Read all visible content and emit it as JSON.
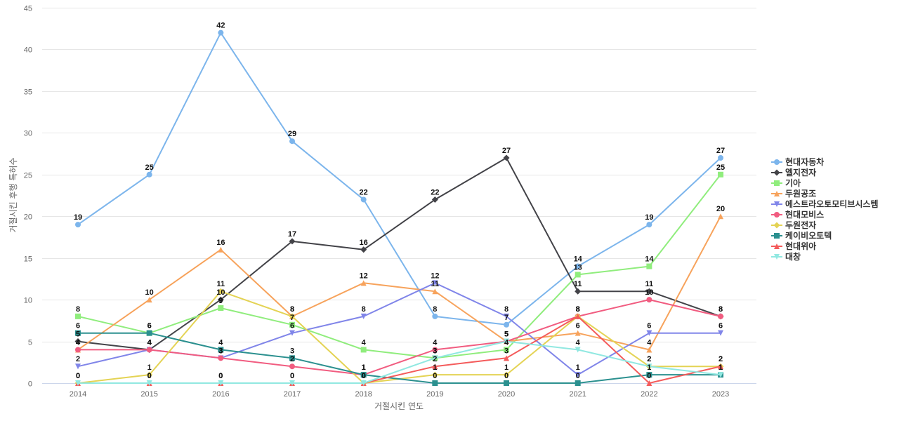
{
  "chart_data": {
    "type": "line",
    "title": "",
    "xlabel": "거절시킨 연도",
    "ylabel": "거절시킨 후행 특허수",
    "ylim": [
      0,
      45
    ],
    "yticks": [
      0,
      5,
      10,
      15,
      20,
      25,
      30,
      35,
      40,
      45
    ],
    "categories": [
      "2014",
      "2015",
      "2016",
      "2017",
      "2018",
      "2019",
      "2020",
      "2021",
      "2022",
      "2023"
    ],
    "grid": true,
    "legend_position": "right",
    "series": [
      {
        "name": "현대자동차",
        "color": "#7cb5ec",
        "marker": "circle",
        "values": [
          19,
          25,
          42,
          29,
          22,
          8,
          7,
          14,
          19,
          27
        ]
      },
      {
        "name": "엘지전자",
        "color": "#434348",
        "marker": "diamond",
        "values": [
          5,
          4,
          10,
          17,
          16,
          22,
          27,
          11,
          11,
          8
        ]
      },
      {
        "name": "기아",
        "color": "#90ed7d",
        "marker": "square",
        "values": [
          8,
          6,
          9,
          7,
          4,
          3,
          4,
          13,
          14,
          25
        ]
      },
      {
        "name": "두원공조",
        "color": "#f7a35c",
        "marker": "triangle",
        "values": [
          4,
          10,
          16,
          8,
          12,
          11,
          5,
          6,
          4,
          20
        ]
      },
      {
        "name": "에스트라오토모티브시스템",
        "color": "#8085e9",
        "marker": "triangle-down",
        "values": [
          2,
          4,
          3,
          6,
          8,
          12,
          8,
          1,
          6,
          6
        ]
      },
      {
        "name": "현대모비스",
        "color": "#f15c80",
        "marker": "circle",
        "values": [
          4,
          4,
          3,
          2,
          1,
          4,
          5,
          8,
          10,
          8
        ]
      },
      {
        "name": "두원전자",
        "color": "#e4d354",
        "marker": "diamond",
        "values": [
          0,
          1,
          11,
          8,
          0,
          1,
          1,
          8,
          2,
          2
        ]
      },
      {
        "name": "케이비오토텍",
        "color": "#2b908f",
        "marker": "square",
        "values": [
          6,
          6,
          4,
          3,
          1,
          0,
          0,
          0,
          1,
          1
        ]
      },
      {
        "name": "현대위아",
        "color": "#f45b5b",
        "marker": "triangle",
        "values": [
          0,
          0,
          0,
          0,
          0,
          2,
          3,
          8,
          0,
          2
        ]
      },
      {
        "name": "대창",
        "color": "#91e8e1",
        "marker": "triangle-down",
        "values": [
          0,
          0,
          0,
          0,
          0,
          3,
          5,
          4,
          2,
          1
        ]
      }
    ]
  }
}
